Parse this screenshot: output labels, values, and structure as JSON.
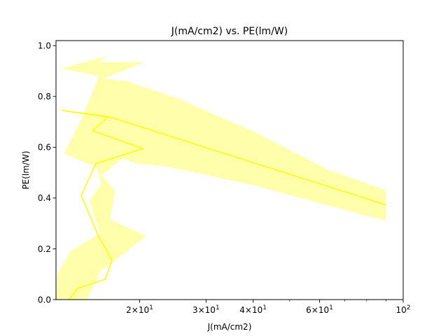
{
  "chart_data": {
    "type": "line",
    "title": "J(mA/cm2) vs. PE(lm/W)",
    "xlabel": "J(mA/cm2)",
    "ylabel": "PE(lm/W)",
    "x_scale": "log",
    "xlim": [
      12,
      100
    ],
    "ylim": [
      0,
      1.02
    ],
    "x_ticks": [
      {
        "value": 20,
        "mantissa": "2",
        "exp": "1"
      },
      {
        "value": 30,
        "mantissa": "3",
        "exp": "1"
      },
      {
        "value": 40,
        "mantissa": "4",
        "exp": "1"
      },
      {
        "value": 60,
        "mantissa": "6",
        "exp": "1"
      },
      {
        "value": 100,
        "mantissa": "",
        "exp": "2"
      }
    ],
    "x_minor_ticks": [
      50,
      70,
      80,
      90
    ],
    "y_ticks": [
      {
        "value": 0.0,
        "label": "0.0"
      },
      {
        "value": 0.2,
        "label": "0.2"
      },
      {
        "value": 0.4,
        "label": "0.4"
      },
      {
        "value": 0.6,
        "label": "0.6"
      },
      {
        "value": 0.8,
        "label": "0.8"
      },
      {
        "value": 1.0,
        "label": "1.0"
      }
    ],
    "grid": false,
    "series": [
      {
        "color": "#ffff00",
        "band_color": "#ffff66",
        "points": [
          {
            "x": 13.0,
            "y": 0.0
          },
          {
            "x": 13.7,
            "y": 0.045
          },
          {
            "x": 16.2,
            "y": 0.08
          },
          {
            "x": 16.9,
            "y": 0.155
          },
          {
            "x": 15.6,
            "y": 0.245
          },
          {
            "x": 14.0,
            "y": 0.41
          },
          {
            "x": 15.3,
            "y": 0.535
          },
          {
            "x": 20.4,
            "y": 0.595
          },
          {
            "x": 15.0,
            "y": 0.665
          },
          {
            "x": 16.5,
            "y": 0.72
          },
          {
            "x": 12.5,
            "y": 0.745
          },
          {
            "x": 17.0,
            "y": 0.715
          },
          {
            "x": 90.0,
            "y": 0.373
          }
        ],
        "band": [
          {
            "x": 12.0,
            "y": 0.0
          },
          {
            "x": 12.1,
            "y": 0.1
          },
          {
            "x": 13.1,
            "y": 0.19
          },
          {
            "x": 15.7,
            "y": 0.26
          },
          {
            "x": 14.7,
            "y": 0.39
          },
          {
            "x": 15.8,
            "y": 0.455
          },
          {
            "x": 15.4,
            "y": 0.52
          },
          {
            "x": 12.6,
            "y": 0.575
          },
          {
            "x": 14.1,
            "y": 0.72
          },
          {
            "x": 15.6,
            "y": 0.88
          },
          {
            "x": 12.4,
            "y": 0.91
          },
          {
            "x": 16.4,
            "y": 0.96
          },
          {
            "x": 15.6,
            "y": 0.935
          },
          {
            "x": 20.6,
            "y": 0.935
          },
          {
            "x": 16.0,
            "y": 0.87
          },
          {
            "x": 18.5,
            "y": 0.86
          },
          {
            "x": 25.4,
            "y": 0.79
          },
          {
            "x": 40.3,
            "y": 0.66
          },
          {
            "x": 63.4,
            "y": 0.51
          },
          {
            "x": 90.0,
            "y": 0.43
          },
          {
            "x": 90.0,
            "y": 0.31
          },
          {
            "x": 63.4,
            "y": 0.37
          },
          {
            "x": 40.3,
            "y": 0.45
          },
          {
            "x": 23.5,
            "y": 0.525
          },
          {
            "x": 19.7,
            "y": 0.535
          },
          {
            "x": 16.6,
            "y": 0.575
          },
          {
            "x": 15.6,
            "y": 0.655
          },
          {
            "x": 19.7,
            "y": 0.61
          },
          {
            "x": 17.6,
            "y": 0.545
          },
          {
            "x": 15.9,
            "y": 0.49
          },
          {
            "x": 17.2,
            "y": 0.425
          },
          {
            "x": 16.7,
            "y": 0.315
          },
          {
            "x": 20.8,
            "y": 0.25
          },
          {
            "x": 18.3,
            "y": 0.185
          },
          {
            "x": 15.8,
            "y": 0.115
          },
          {
            "x": 14.5,
            "y": 0.0
          }
        ]
      }
    ]
  }
}
